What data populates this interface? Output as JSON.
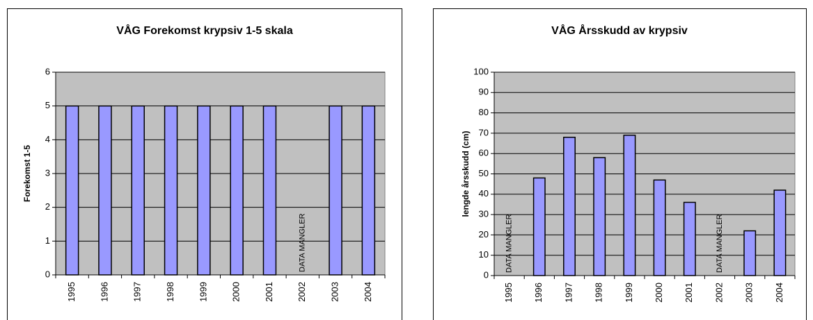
{
  "chart_data": [
    {
      "type": "bar",
      "title": "VÅG Forekomst krypsiv 1-5 skala",
      "y_label": "Forekomst 1-5",
      "categories": [
        "1995",
        "1996",
        "1997",
        "1998",
        "1999",
        "2000",
        "2001",
        "2002",
        "2003",
        "2004"
      ],
      "values": [
        5,
        5,
        5,
        5,
        5,
        5,
        5,
        null,
        5,
        5
      ],
      "color": "#9999ff",
      "ylim": [
        0,
        6
      ],
      "yticks": [
        0,
        1,
        2,
        3,
        4,
        5,
        6
      ],
      "grid": true,
      "annotations": [
        {
          "text": "DATA MANGLER",
          "category": "2002"
        }
      ]
    },
    {
      "type": "bar",
      "title": "VÅG Årsskudd av krypsiv",
      "y_label": "lengde årsskudd (cm)",
      "categories": [
        "1995",
        "1996",
        "1997",
        "1998",
        "1999",
        "2000",
        "2001",
        "2002",
        "2003",
        "2004"
      ],
      "values": [
        null,
        48,
        68,
        58,
        69,
        47,
        36,
        null,
        22,
        42
      ],
      "color": "#9999ff",
      "ylim": [
        0,
        100
      ],
      "yticks": [
        0,
        10,
        20,
        30,
        40,
        50,
        60,
        70,
        80,
        90,
        100
      ],
      "grid": true,
      "annotations": [
        {
          "text": "DATA MANGLER",
          "category": "1995"
        },
        {
          "text": "DATA MANGLER",
          "category": "2002"
        }
      ]
    }
  ]
}
